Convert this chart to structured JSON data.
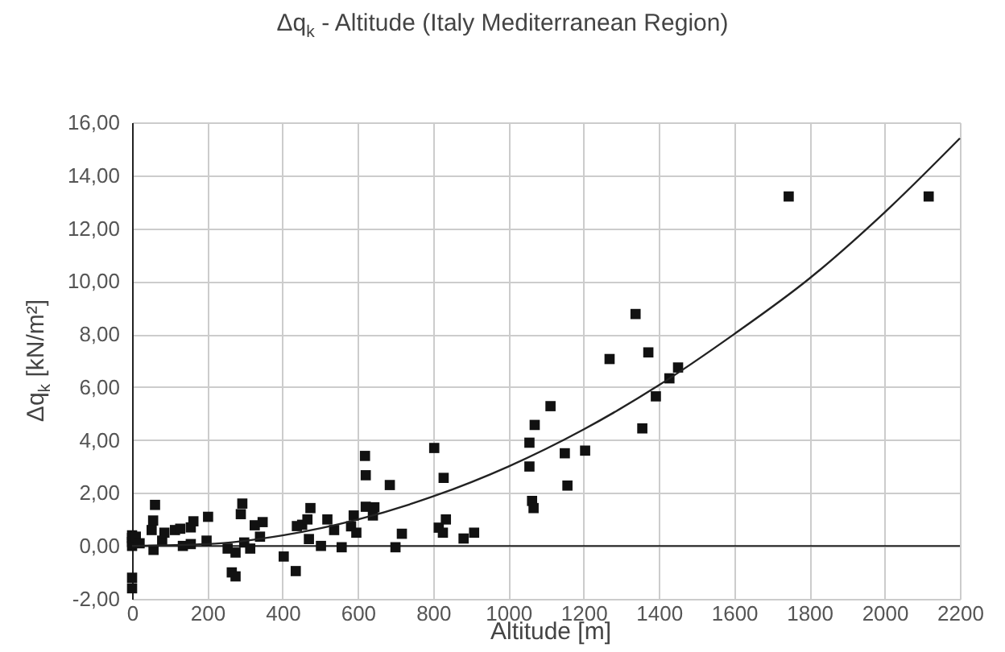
{
  "chart_data": {
    "type": "scatter",
    "title": "Δq$_{k}$ - Altitude (Italy Mediterranean Region)",
    "xlabel": "Altitude [m]",
    "ylabel": "Δq$_{k}$ [kN/m²]",
    "xlim": [
      0,
      2200
    ],
    "xticks": [
      0,
      200,
      400,
      600,
      800,
      1000,
      1200,
      1400,
      1600,
      1800,
      2000,
      2200
    ],
    "ylim": [
      -2,
      16
    ],
    "yticks": [
      {
        "value": -2,
        "label": "-2,00"
      },
      {
        "value": 0,
        "label": "0,00"
      },
      {
        "value": 2,
        "label": "2,00"
      },
      {
        "value": 4,
        "label": "4,00"
      },
      {
        "value": 6,
        "label": "6,00"
      },
      {
        "value": 8,
        "label": "8,00"
      },
      {
        "value": 10,
        "label": "10,00"
      },
      {
        "value": 12,
        "label": "12,00"
      },
      {
        "value": 14,
        "label": "14,00"
      },
      {
        "value": 16,
        "label": "16,00"
      }
    ],
    "grid": true,
    "series": [
      {
        "color": "#111111",
        "marker": "square",
        "x": [
          0,
          0,
          0,
          0,
          0,
          0,
          10,
          20,
          61,
          56,
          52,
          57,
          80,
          86,
          114,
          128,
          135,
          156,
          163,
          156,
          202,
          198,
          254,
          265,
          275,
          275,
          293,
          289,
          298,
          314,
          326,
          347,
          340,
          403,
          435,
          438,
          452,
          466,
          474,
          470,
          502,
          519,
          537,
          557,
          582,
          589,
          596,
          619,
          621,
          621,
          640,
          644,
          685,
          700,
          717,
          803,
          828,
          815,
          826,
          834,
          881,
          909,
          1056,
          1056,
          1063,
          1067,
          1070,
          1112,
          1150,
          1157,
          1204,
          1269,
          1338,
          1356,
          1372,
          1392,
          1428,
          1451,
          1745,
          2117
        ],
        "values": [
          0.4,
          0.3,
          0.15,
          0,
          -1.2,
          -1.6,
          0.35,
          0.1,
          1.55,
          0.96,
          0.6,
          -0.15,
          0.2,
          0.5,
          0.6,
          0.65,
          0,
          0.7,
          0.93,
          0.07,
          1.1,
          0.2,
          -0.1,
          -1.0,
          -1.15,
          -0.25,
          1.6,
          1.2,
          0.13,
          -0.1,
          0.78,
          0.9,
          0.35,
          -0.4,
          -0.95,
          0.75,
          0.8,
          1.0,
          1.43,
          0.26,
          0,
          1.0,
          0.6,
          -0.05,
          0.74,
          1.15,
          0.5,
          3.4,
          2.67,
          1.48,
          1.15,
          1.46,
          2.3,
          -0.05,
          0.46,
          3.7,
          2.57,
          0.69,
          0.5,
          1.0,
          0.28,
          0.5,
          3.9,
          3.0,
          1.7,
          1.43,
          4.57,
          5.28,
          3.5,
          2.28,
          3.6,
          7.06,
          8.76,
          4.44,
          7.31,
          5.65,
          6.33,
          6.74,
          13.2,
          13.2
        ]
      },
      {
        "type": "line",
        "color": "#222222",
        "x": [
          0,
          200,
          400,
          600,
          800,
          1000,
          1200,
          1400,
          1600,
          1800,
          2000,
          2200
        ],
        "values": [
          0,
          0.07,
          0.4,
          1.0,
          1.87,
          3.0,
          4.4,
          6.07,
          8.0,
          10.1,
          12.6,
          15.4
        ]
      }
    ]
  }
}
